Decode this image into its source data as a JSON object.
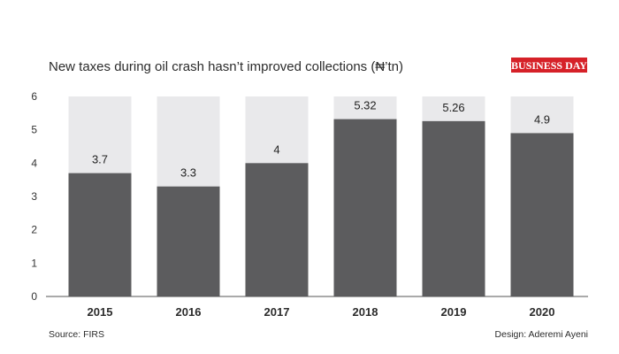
{
  "chart_data": {
    "type": "bar",
    "title": "New taxes during oil crash hasn’t improved collections (₦’tn)",
    "categories": [
      "2015",
      "2016",
      "2017",
      "2018",
      "2019",
      "2020"
    ],
    "values": [
      3.7,
      3.3,
      4,
      5.32,
      5.26,
      4.9
    ],
    "data_labels": [
      "3.7",
      "3.3",
      "4",
      "5.32",
      "5.26",
      "4.9"
    ],
    "ylim": [
      0,
      6
    ],
    "yticks": [
      "0",
      "1",
      "2",
      "3",
      "4",
      "5",
      "6"
    ],
    "xlabel": "",
    "ylabel": "",
    "grid": false,
    "background_bars": true
  },
  "brand": "BUSINESS DAY",
  "source": "Source: FIRS",
  "design": "Design: Aderemi Ayeni",
  "colors": {
    "bar": "#5c5c5e",
    "bar_background": "#e9e9eb",
    "axis": "#555555",
    "brand_bg": "#d62128",
    "brand_text": "#ffffff"
  }
}
